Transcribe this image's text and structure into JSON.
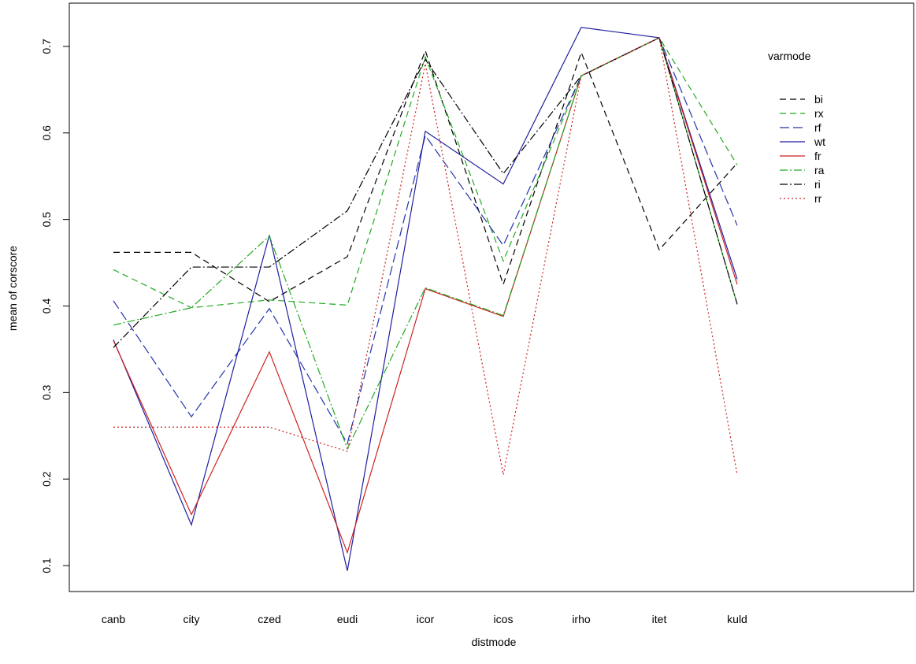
{
  "chart_data": {
    "type": "line",
    "xlabel": "distmode",
    "ylabel": "mean of  corscore",
    "categories": [
      "canb",
      "city",
      "czed",
      "eudi",
      "icor",
      "icos",
      "irho",
      "itet",
      "kuld"
    ],
    "ylim": [
      0.07,
      0.75
    ],
    "yticks": [
      0.1,
      0.2,
      0.3,
      0.4,
      0.5,
      0.6,
      0.7
    ],
    "legend": {
      "title": "varmode",
      "position": "top-right"
    },
    "series": [
      {
        "name": "bi",
        "color": "#000000",
        "dash": "8,5",
        "values": [
          0.462,
          0.462,
          0.405,
          0.457,
          0.695,
          0.425,
          0.693,
          0.465,
          0.565
        ]
      },
      {
        "name": "rx",
        "color": "#22aa22",
        "dash": "8,5",
        "values": [
          0.442,
          0.398,
          0.407,
          0.401,
          0.688,
          0.452,
          0.666,
          0.71,
          0.563
        ]
      },
      {
        "name": "rf",
        "color": "#2233aa",
        "dash": "12,5",
        "values": [
          0.406,
          0.272,
          0.397,
          0.241,
          0.597,
          0.47,
          0.666,
          0.71,
          0.493
        ]
      },
      {
        "name": "wt",
        "color": "#1f1fa0",
        "dash": "",
        "values": [
          0.361,
          0.147,
          0.482,
          0.094,
          0.602,
          0.541,
          0.722,
          0.71,
          0.431
        ]
      },
      {
        "name": "fr",
        "color": "#cc2222",
        "dash": "",
        "values": [
          0.36,
          0.159,
          0.347,
          0.115,
          0.42,
          0.388,
          0.666,
          0.71,
          0.425
        ]
      },
      {
        "name": "ra",
        "color": "#22aa22",
        "dash": "10,3,2,3",
        "values": [
          0.378,
          0.398,
          0.481,
          0.235,
          0.421,
          0.389,
          0.666,
          0.71,
          0.402
        ]
      },
      {
        "name": "ri",
        "color": "#000000",
        "dash": "10,3,2,3",
        "values": [
          0.352,
          0.445,
          0.445,
          0.51,
          0.685,
          0.553,
          0.666,
          0.71,
          0.402
        ]
      },
      {
        "name": "rr",
        "color": "#cc2222",
        "dash": "2,3",
        "values": [
          0.26,
          0.26,
          0.26,
          0.232,
          0.68,
          0.205,
          0.666,
          0.71,
          0.205
        ]
      }
    ]
  }
}
